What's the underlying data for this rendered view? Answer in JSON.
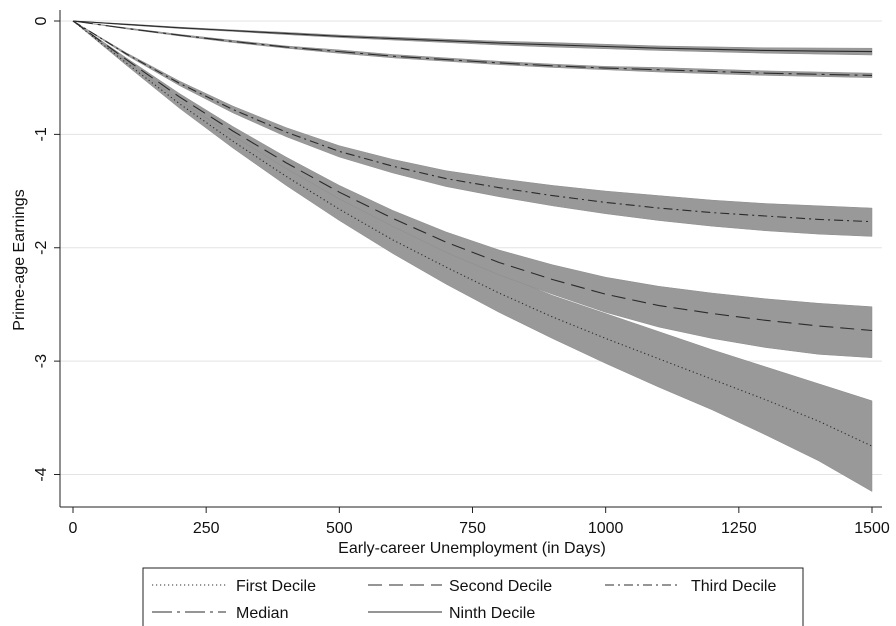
{
  "chart_data": {
    "type": "line",
    "title": "",
    "xlabel": "Early-career Unemployment (in Days)",
    "ylabel": "Prime-age Earnings",
    "xlim": [
      0,
      1500
    ],
    "ylim": [
      -4.2,
      0.05
    ],
    "xticks": [
      0,
      250,
      500,
      750,
      1000,
      1250,
      1500
    ],
    "xtick_labels": [
      "0",
      "250",
      "500",
      "750",
      "1000",
      "1250",
      "1500"
    ],
    "yticks": [
      0,
      -1,
      -2,
      -3,
      -4
    ],
    "ytick_labels": [
      "0",
      "-1",
      "-2",
      "-3",
      "-4"
    ],
    "grid": "horizontal",
    "legend_position": "bottom",
    "confidence_band_color": "#999999",
    "x": [
      0,
      100,
      200,
      300,
      400,
      500,
      600,
      700,
      800,
      900,
      1000,
      1100,
      1200,
      1300,
      1400,
      1500
    ],
    "series": [
      {
        "name": "First Decile",
        "style": "dotted",
        "values": [
          0,
          -0.37,
          -0.73,
          -1.06,
          -1.37,
          -1.66,
          -1.93,
          -2.17,
          -2.4,
          -2.61,
          -2.8,
          -2.98,
          -3.16,
          -3.34,
          -3.53,
          -3.75
        ],
        "lower": [
          0,
          -0.39,
          -0.77,
          -1.12,
          -1.45,
          -1.76,
          -2.05,
          -2.32,
          -2.57,
          -2.8,
          -3.02,
          -3.23,
          -3.43,
          -3.65,
          -3.88,
          -4.15
        ],
        "upper": [
          0,
          -0.35,
          -0.69,
          -1.0,
          -1.29,
          -1.56,
          -1.81,
          -2.03,
          -2.23,
          -2.42,
          -2.58,
          -2.74,
          -2.9,
          -3.05,
          -3.2,
          -3.35
        ]
      },
      {
        "name": "Second Decile",
        "style": "dashed",
        "values": [
          0,
          -0.34,
          -0.67,
          -0.97,
          -1.25,
          -1.51,
          -1.74,
          -1.95,
          -2.13,
          -2.28,
          -2.41,
          -2.51,
          -2.58,
          -2.64,
          -2.69,
          -2.73
        ],
        "lower": [
          0,
          -0.355,
          -0.7,
          -1.01,
          -1.3,
          -1.57,
          -1.81,
          -2.04,
          -2.24,
          -2.41,
          -2.57,
          -2.7,
          -2.8,
          -2.88,
          -2.94,
          -2.97
        ],
        "upper": [
          0,
          -0.325,
          -0.64,
          -0.93,
          -1.2,
          -1.45,
          -1.67,
          -1.86,
          -2.02,
          -2.15,
          -2.26,
          -2.34,
          -2.4,
          -2.45,
          -2.49,
          -2.52
        ]
      },
      {
        "name": "Third Decile",
        "style": "dash-dot",
        "values": [
          0,
          -0.29,
          -0.55,
          -0.78,
          -0.98,
          -1.15,
          -1.28,
          -1.39,
          -1.47,
          -1.54,
          -1.6,
          -1.65,
          -1.69,
          -1.72,
          -1.75,
          -1.77
        ],
        "lower": [
          0,
          -0.3,
          -0.57,
          -0.81,
          -1.02,
          -1.2,
          -1.34,
          -1.46,
          -1.55,
          -1.63,
          -1.7,
          -1.76,
          -1.81,
          -1.85,
          -1.88,
          -1.9
        ],
        "upper": [
          0,
          -0.28,
          -0.53,
          -0.75,
          -0.94,
          -1.1,
          -1.22,
          -1.32,
          -1.39,
          -1.45,
          -1.5,
          -1.54,
          -1.58,
          -1.61,
          -1.63,
          -1.65
        ]
      },
      {
        "name": "Median",
        "style": "long-dash-dot",
        "values": [
          0,
          -0.065,
          -0.125,
          -0.18,
          -0.23,
          -0.27,
          -0.31,
          -0.34,
          -0.37,
          -0.395,
          -0.415,
          -0.43,
          -0.445,
          -0.46,
          -0.47,
          -0.48
        ],
        "lower": [
          0,
          -0.07,
          -0.132,
          -0.19,
          -0.24,
          -0.285,
          -0.325,
          -0.355,
          -0.385,
          -0.41,
          -0.43,
          -0.45,
          -0.465,
          -0.48,
          -0.49,
          -0.5
        ],
        "upper": [
          0,
          -0.06,
          -0.118,
          -0.17,
          -0.22,
          -0.255,
          -0.295,
          -0.325,
          -0.355,
          -0.38,
          -0.4,
          -0.41,
          -0.425,
          -0.44,
          -0.45,
          -0.46
        ]
      },
      {
        "name": "Ninth Decile",
        "style": "solid",
        "values": [
          0,
          -0.03,
          -0.06,
          -0.085,
          -0.11,
          -0.135,
          -0.155,
          -0.175,
          -0.195,
          -0.21,
          -0.225,
          -0.24,
          -0.25,
          -0.26,
          -0.265,
          -0.27
        ],
        "lower": [
          0,
          -0.035,
          -0.066,
          -0.092,
          -0.12,
          -0.146,
          -0.168,
          -0.19,
          -0.212,
          -0.23,
          -0.245,
          -0.26,
          -0.272,
          -0.284,
          -0.292,
          -0.3
        ],
        "upper": [
          0,
          -0.025,
          -0.054,
          -0.078,
          -0.1,
          -0.124,
          -0.142,
          -0.16,
          -0.178,
          -0.19,
          -0.205,
          -0.22,
          -0.228,
          -0.236,
          -0.238,
          -0.24
        ]
      }
    ]
  }
}
